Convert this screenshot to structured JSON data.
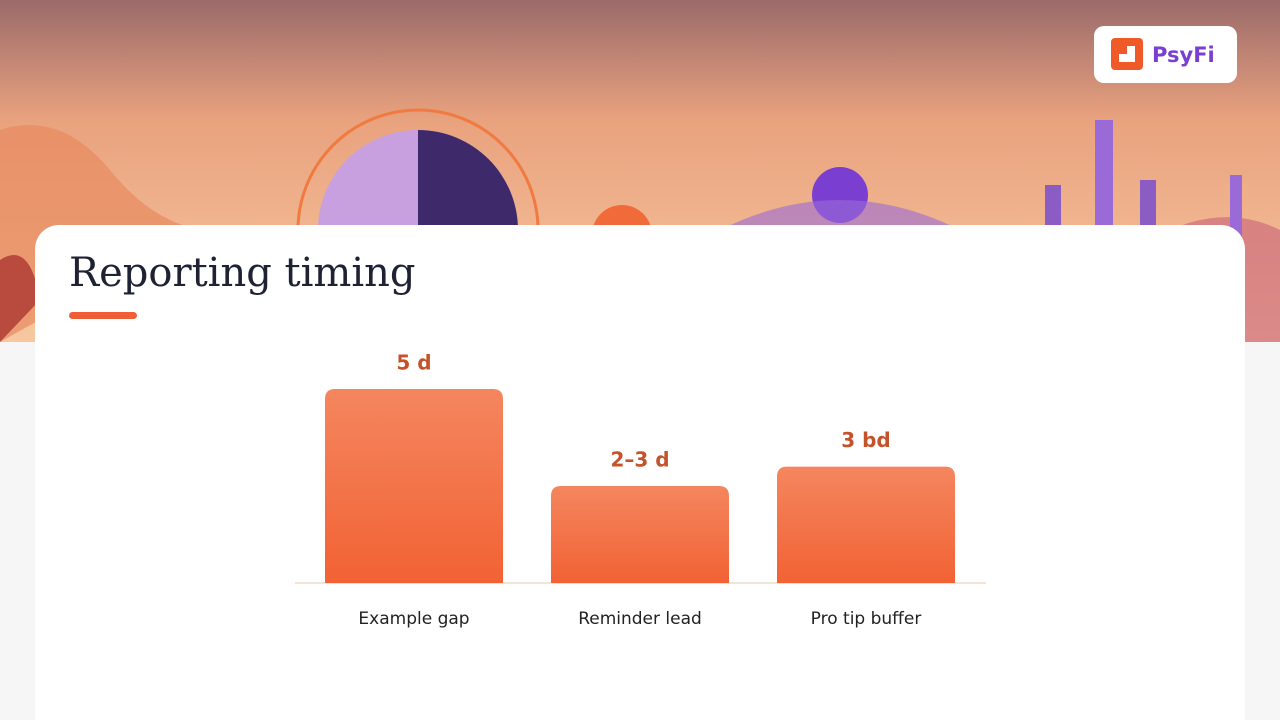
{
  "brand": "PsyFi",
  "chart_data": {
    "type": "bar",
    "title": "Reporting timing",
    "categories": [
      "Example gap",
      "Reminder lead",
      "Pro tip buffer"
    ],
    "values": [
      5,
      2.5,
      3
    ],
    "value_labels": [
      "5 d",
      "2–3 d",
      "3 bd"
    ],
    "color": "#f26a3d",
    "ylim": [
      0,
      5
    ],
    "grid": false
  }
}
